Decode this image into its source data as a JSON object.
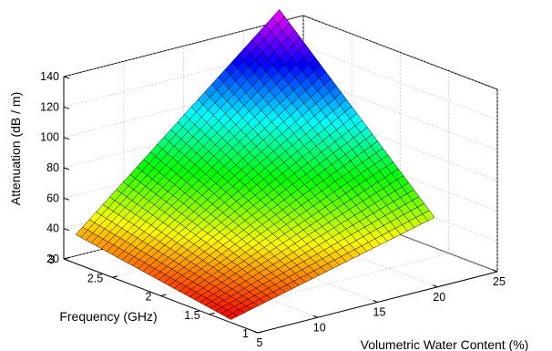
{
  "chart_data": {
    "type": "surface",
    "title": "",
    "xlabel": "Volumetric Water Content (%)",
    "ylabel": "Frequency (GHz)",
    "zlabel": "Attenuation (dB / m)",
    "xlim": [
      5,
      25
    ],
    "ylim": [
      1,
      3
    ],
    "zlim": [
      20,
      140
    ],
    "x_ticks": [
      5,
      10,
      15,
      20,
      25
    ],
    "y_ticks": [
      1,
      1.5,
      2,
      2.5,
      3
    ],
    "z_ticks": [
      20,
      40,
      60,
      80,
      100,
      120,
      140
    ],
    "x_tick_labels": [
      "5",
      "10",
      "15",
      "20",
      "25"
    ],
    "y_tick_labels": [
      "1",
      "1.5",
      "2",
      "2.5",
      "3"
    ],
    "z_tick_labels": [
      "20",
      "40",
      "60",
      "80",
      "100",
      "120",
      "140"
    ],
    "grid": true,
    "colormap": "hsv",
    "x_grid": [
      6,
      23
    ],
    "y_grid": [
      1.4,
      3
    ],
    "grid_resolution": [
      30,
      30
    ],
    "corner_values": [
      {
        "x": 6,
        "y": 1.4,
        "z": 17
      },
      {
        "x": 23,
        "y": 1.4,
        "z": 50
      },
      {
        "x": 6,
        "y": 3,
        "z": 34
      },
      {
        "x": 23,
        "y": 3,
        "z": 148
      }
    ],
    "interpolation": "bilinear"
  }
}
